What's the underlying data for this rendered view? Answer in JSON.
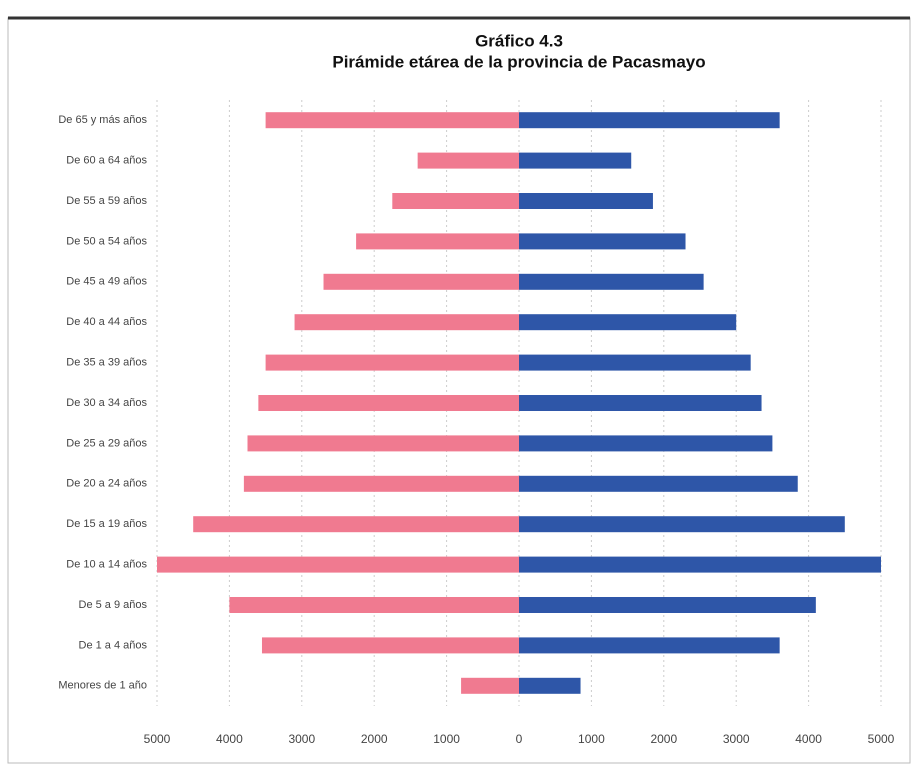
{
  "chart_data": {
    "type": "pyramid",
    "title": "Gráfico 4.3",
    "subtitle": "Pirámide etárea de la provincia de Pacasmayo",
    "categories": [
      "De 65 y más años",
      "De 60 a 64 años",
      "De 55 a 59 años",
      "De 50 a 54 años",
      "De 45 a 49 años",
      "De 40 a 44 años",
      "De 35 a 39 años",
      "De 30 a 34 años",
      "De 25 a 29 años",
      "De 20 a 24 años",
      "De 15 a 19 años",
      "De 10 a 14 años",
      "De 5 a 9 años",
      "De 1 a 4 años",
      "Menores de 1 año"
    ],
    "series": [
      {
        "color": "#f07a90",
        "values": [
          -3500,
          -1400,
          -1750,
          -2250,
          -2700,
          -3100,
          -3500,
          -3600,
          -3750,
          -3800,
          -4500,
          -5000,
          -4000,
          -3550,
          -800
        ]
      },
      {
        "color": "#2e56a8",
        "values": [
          3600,
          1550,
          1850,
          2300,
          2550,
          3000,
          3200,
          3350,
          3500,
          3850,
          4500,
          5000,
          4100,
          3600,
          850
        ]
      }
    ],
    "xlim": [
      -5000,
      5000
    ],
    "xticks": [
      {
        "value": -5000,
        "label": "5000"
      },
      {
        "value": -4000,
        "label": "4000"
      },
      {
        "value": -3000,
        "label": "3000"
      },
      {
        "value": -2000,
        "label": "2000"
      },
      {
        "value": -1000,
        "label": "1000"
      },
      0,
      1000,
      2000,
      3000,
      4000,
      5000
    ],
    "grid": true
  }
}
